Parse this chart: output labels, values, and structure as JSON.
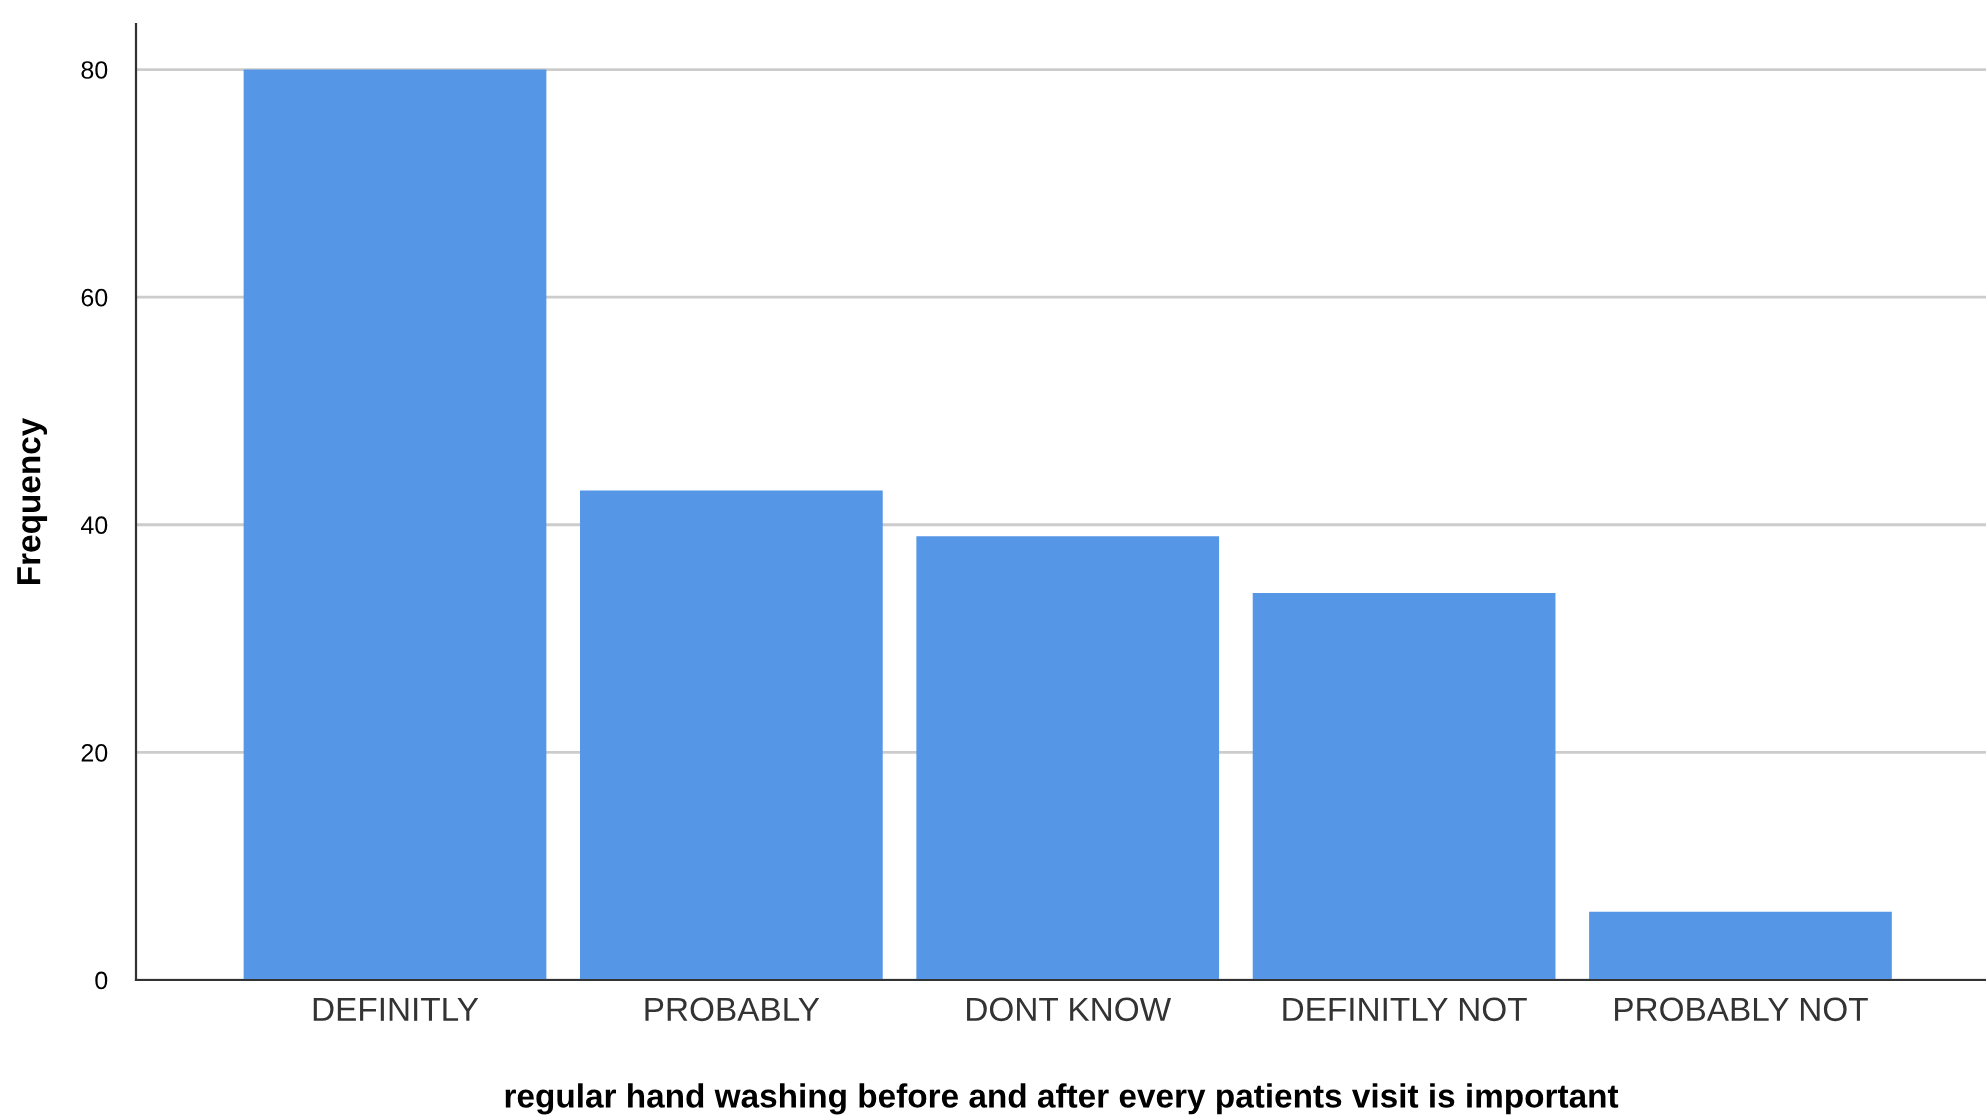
{
  "chart_data": {
    "type": "bar",
    "xlabel": "regular hand washing before and after every patients visit is important",
    "ylabel": "Frequency",
    "categories": [
      "DEFINITLY",
      "PROBABLY",
      "DONT KNOW",
      "DEFINITLY NOT",
      "PROBABLY NOT"
    ],
    "values": [
      80,
      43,
      39,
      34,
      6
    ],
    "color": "#5596e6",
    "ylim": [
      0,
      84
    ],
    "yticks": [
      0,
      20,
      40,
      60,
      80
    ],
    "grid": "y"
  }
}
